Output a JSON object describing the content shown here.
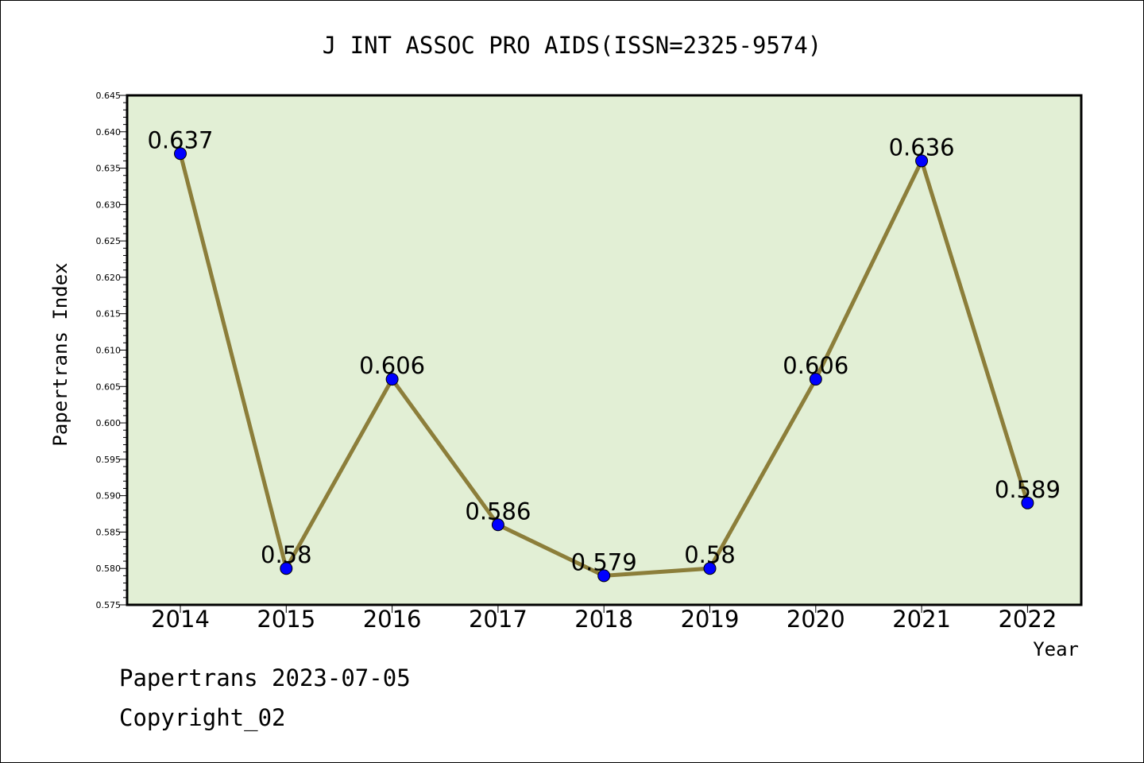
{
  "chart_data": {
    "type": "line",
    "title": "J INT ASSOC PRO AIDS(ISSN=2325-9574)",
    "xlabel": "Year",
    "ylabel": "Papertrans Index",
    "categories": [
      "2014",
      "2015",
      "2016",
      "2017",
      "2018",
      "2019",
      "2020",
      "2021",
      "2022"
    ],
    "values": [
      0.637,
      0.58,
      0.606,
      0.586,
      0.579,
      0.58,
      0.606,
      0.636,
      0.589
    ],
    "data_labels": [
      "0.637",
      "0.58",
      "0.606",
      "0.586",
      "0.579",
      "0.58",
      "0.606",
      "0.636",
      "0.589"
    ],
    "ylim": [
      0.575,
      0.645
    ],
    "yticks": [
      "0.575",
      "0.580",
      "0.585",
      "0.590",
      "0.595",
      "0.600",
      "0.605",
      "0.610",
      "0.615",
      "0.620",
      "0.625",
      "0.630",
      "0.635",
      "0.640",
      "0.645"
    ],
    "grid": false,
    "colors": {
      "plot_background": "#e2efd5",
      "line": "#8c7e3a",
      "marker": "#0000ff"
    }
  },
  "footer": {
    "date_line": "Papertrans 2023-07-05",
    "copyright": "Copyright_02"
  }
}
